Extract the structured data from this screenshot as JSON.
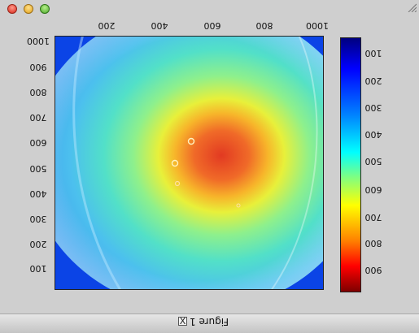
{
  "window": {
    "title": "Figure 1",
    "checkbox_mark": "X",
    "controls": [
      "close",
      "minimize",
      "zoom"
    ],
    "orientation": "rotated 180 degrees (upside-down text)"
  },
  "plot": {
    "colormap": "jet",
    "x_ticks": [
      "200",
      "400",
      "600",
      "800",
      "1000"
    ],
    "y_ticks": [
      "1000",
      "900",
      "800",
      "700",
      "600",
      "500",
      "400",
      "300",
      "200",
      "100"
    ]
  },
  "colorbar": {
    "ticks": [
      "100",
      "200",
      "300",
      "400",
      "500",
      "600",
      "700",
      "800",
      "900"
    ]
  },
  "colors": {
    "background_blue": "#0b44e6",
    "hot_center": "#e8402a",
    "window_bg": "#cfcfcf"
  },
  "icons": {
    "resize": "resize-grip-icon",
    "close": "close-icon",
    "minimize": "minimize-icon",
    "zoom": "zoom-icon"
  }
}
